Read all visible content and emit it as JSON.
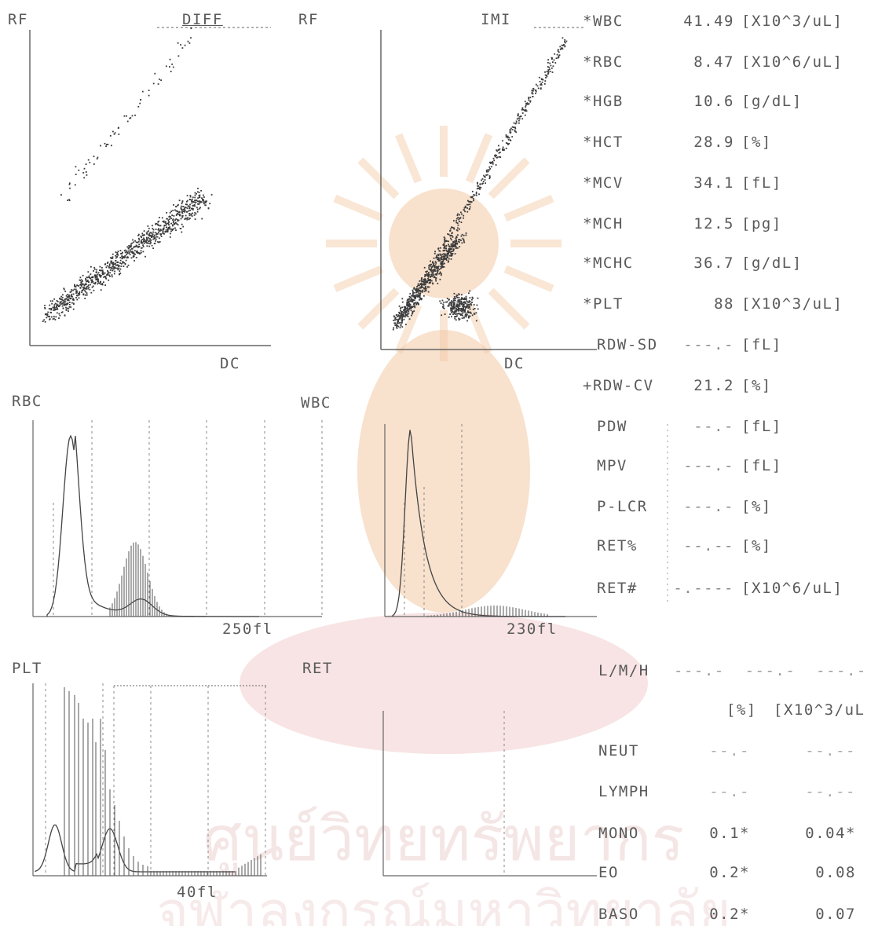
{
  "colors": {
    "ink": "#5a5a5a",
    "dots": "#3a3a3a",
    "watermark_orange": "#f3c9a4",
    "watermark_red": "#efc3c3"
  },
  "scatter_panels": {
    "diff": {
      "y_label": "RF",
      "title": "DIFF",
      "x_label": "DC"
    },
    "imi": {
      "y_label": "RF",
      "title": "IMI",
      "x_label": "DC"
    }
  },
  "histograms": {
    "rbc": {
      "label": "RBC",
      "x_mark": "250fl"
    },
    "wbc": {
      "label": "WBC",
      "x_mark": "230fl"
    },
    "plt": {
      "label": "PLT",
      "x_mark": "40fl"
    },
    "ret": {
      "label": "RET"
    }
  },
  "results": [
    {
      "name": "*WBC",
      "value": "41.49",
      "unit": "[X10^3/uL]"
    },
    {
      "name": "*RBC",
      "value": "8.47",
      "unit": "[X10^6/uL]"
    },
    {
      "name": "*HGB",
      "value": "10.6",
      "unit": "[g/dL]"
    },
    {
      "name": "*HCT",
      "value": "28.9",
      "unit": "[%]"
    },
    {
      "name": "*MCV",
      "value": "34.1",
      "unit": "[fL]"
    },
    {
      "name": "*MCH",
      "value": "12.5",
      "unit": "[pg]"
    },
    {
      "name": "*MCHC",
      "value": "36.7",
      "unit": "[g/dL]"
    },
    {
      "name": "*PLT",
      "value": "88",
      "unit": "[X10^3/uL]"
    },
    {
      "name": "RDW-SD",
      "value": "---.-",
      "unit": "[fL]"
    },
    {
      "name": "+RDW-CV",
      "value": "21.2",
      "unit": "[%]"
    },
    {
      "name": "PDW",
      "value": "--.-",
      "unit": "[fL]"
    },
    {
      "name": "MPV",
      "value": "---.-",
      "unit": "[fL]"
    },
    {
      "name": "P-LCR",
      "value": "---.-",
      "unit": "[%]"
    },
    {
      "name": "RET%",
      "value": "--.--",
      "unit": "[%]"
    },
    {
      "name": "RET#",
      "value": "-.----",
      "unit": "[X10^6/uL]"
    }
  ],
  "lmh": {
    "label": "L/M/H",
    "values": "---.-  ---.-  ---.-"
  },
  "diff_header": {
    "pct": "[%]",
    "abs": "[X10^3/uL"
  },
  "diff_rows": [
    {
      "name": "NEUT",
      "pct": "--.-",
      "abs": "--.--"
    },
    {
      "name": "LYMPH",
      "pct": "--.-",
      "abs": "--.--"
    },
    {
      "name": "MONO",
      "pct": "0.1*",
      "abs": "0.04*"
    },
    {
      "name": "EO",
      "pct": "0.2*",
      "abs": "0.08"
    },
    {
      "name": "BASO",
      "pct": "0.2*",
      "abs": "0.07"
    }
  ]
}
